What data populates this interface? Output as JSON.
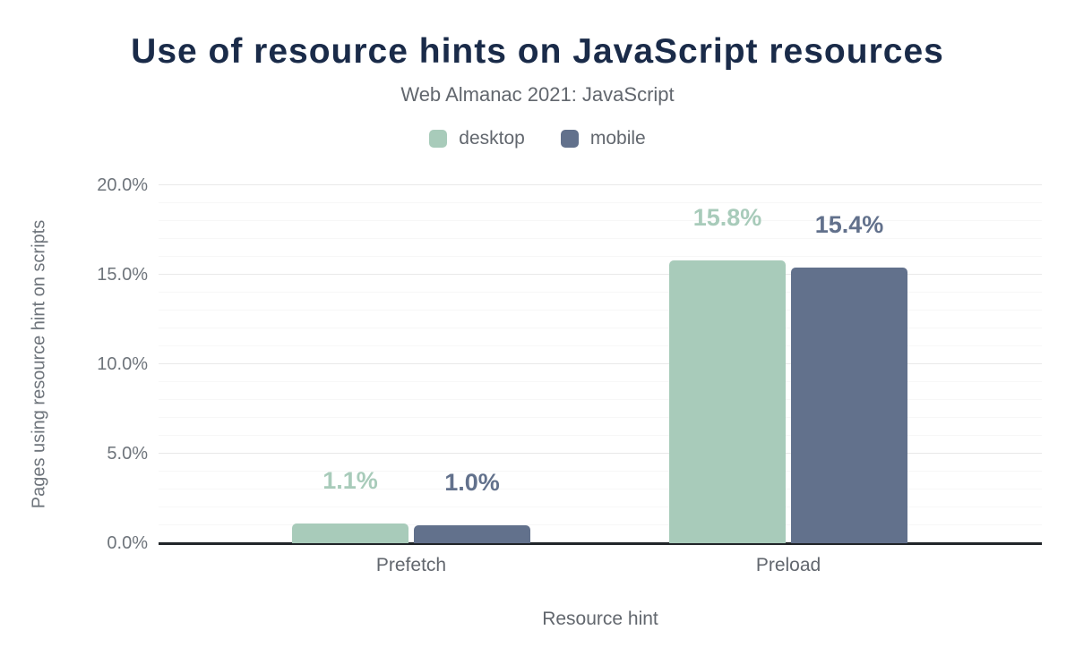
{
  "header": {
    "title": "Use of resource hints on JavaScript resources",
    "subtitle": "Web Almanac 2021: JavaScript"
  },
  "chart_data": {
    "type": "bar",
    "title": "Use of resource hints on JavaScript resources",
    "subtitle": "Web Almanac 2021: JavaScript",
    "categories": [
      "Prefetch",
      "Preload"
    ],
    "series": [
      {
        "name": "desktop",
        "color": "#a8cbba",
        "values": [
          1.1,
          15.8
        ],
        "value_labels": [
          "1.1%",
          "15.8%"
        ]
      },
      {
        "name": "mobile",
        "color": "#62718c",
        "values": [
          1.0,
          15.4
        ],
        "value_labels": [
          "1.0%",
          "15.4%"
        ]
      }
    ],
    "xlabel": "Resource hint",
    "ylabel": "Pages using resource hint on scripts",
    "ylim": [
      0,
      20
    ],
    "yticks": [
      {
        "value": 0,
        "label": "0.0%"
      },
      {
        "value": 5,
        "label": "5.0%"
      },
      {
        "value": 10,
        "label": "10.0%"
      },
      {
        "value": 15,
        "label": "15.0%"
      },
      {
        "value": 20,
        "label": "20.0%"
      }
    ],
    "grid": {
      "minor_step": 1,
      "major_step": 5
    },
    "legend_position": "top",
    "gridlines": true
  },
  "colors": {
    "title": "#1a2b49",
    "subtitle_text": "#62676e",
    "axis_text": "#6e747b",
    "axis_line": "#212529",
    "major_grid": "#e9e9e9",
    "minor_grid": "#f7f7f7"
  }
}
